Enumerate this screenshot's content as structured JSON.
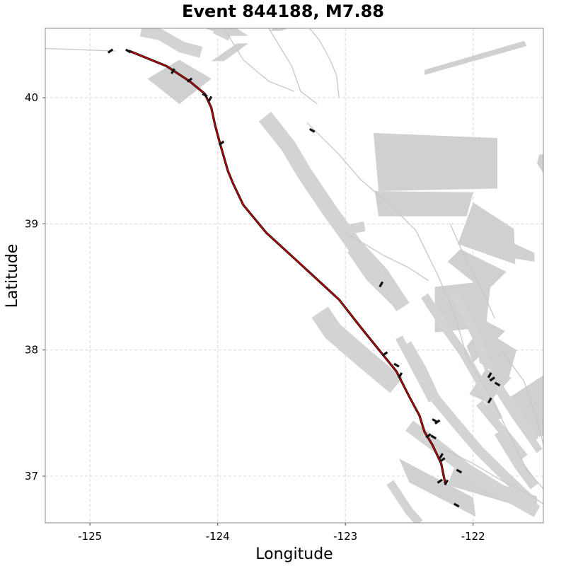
{
  "chart_data": {
    "type": "map",
    "title": "Event 844188, M7.88",
    "xlabel": "Longitude",
    "ylabel": "Latitude",
    "xlim": [
      -125.35,
      -121.45
    ],
    "ylim": [
      36.63,
      40.55
    ],
    "xticks": [
      -125,
      -124,
      -123,
      -122
    ],
    "yticks": [
      37,
      38,
      39,
      40
    ],
    "grid": true,
    "colors": {
      "rupture": "#cc0000",
      "fault_zone": "#d3d3d3",
      "trace": "#c8c8c8",
      "marker": "#111111"
    },
    "rupture_trace": [
      [
        -124.69,
        40.37
      ],
      [
        -124.4,
        40.25
      ],
      [
        -124.22,
        40.13
      ],
      [
        -124.1,
        40.03
      ],
      [
        -124.05,
        39.92
      ],
      [
        -124.02,
        39.78
      ],
      [
        -123.98,
        39.63
      ],
      [
        -123.92,
        39.42
      ],
      [
        -123.88,
        39.32
      ],
      [
        -123.8,
        39.15
      ],
      [
        -123.62,
        38.93
      ],
      [
        -123.35,
        38.68
      ],
      [
        -123.05,
        38.4
      ],
      [
        -122.88,
        38.18
      ],
      [
        -122.72,
        37.98
      ],
      [
        -122.6,
        37.83
      ],
      [
        -122.5,
        37.63
      ],
      [
        -122.42,
        37.48
      ],
      [
        -122.38,
        37.35
      ],
      [
        -122.32,
        37.25
      ],
      [
        -122.25,
        37.1
      ],
      [
        -122.22,
        36.95
      ]
    ],
    "fault_zones": [
      [
        [
          -124.1,
          40.55
        ],
        [
          -123.85,
          40.55
        ],
        [
          -123.76,
          40.49
        ],
        [
          -123.93,
          40.49
        ]
      ],
      [
        [
          -123.6,
          40.53
        ],
        [
          -123.56,
          40.55
        ],
        [
          -123.45,
          40.55
        ],
        [
          -123.5,
          40.53
        ]
      ],
      [
        [
          -123.85,
          40.43
        ],
        [
          -123.76,
          40.43
        ],
        [
          -123.95,
          40.29
        ],
        [
          -124.05,
          40.29
        ]
      ],
      [
        [
          -124.55,
          40.15
        ],
        [
          -124.3,
          40.3
        ],
        [
          -124.05,
          40.15
        ],
        [
          -124.3,
          39.95
        ]
      ],
      [
        [
          -122.38,
          40.22
        ],
        [
          -121.6,
          40.45
        ],
        [
          -121.58,
          40.41
        ],
        [
          -122.38,
          40.18
        ]
      ],
      [
        [
          -122.78,
          39.72
        ],
        [
          -121.81,
          39.68
        ],
        [
          -121.81,
          39.28
        ],
        [
          -122.74,
          39.26
        ]
      ],
      [
        [
          -122.77,
          39.26
        ],
        [
          -122.0,
          39.25
        ],
        [
          -122.05,
          39.06
        ],
        [
          -122.74,
          39.06
        ]
      ],
      [
        [
          -122.0,
          39.17
        ],
        [
          -121.68,
          38.96
        ],
        [
          -121.67,
          38.68
        ],
        [
          -122.12,
          38.84
        ]
      ],
      [
        [
          -121.8,
          38.9
        ],
        [
          -121.52,
          38.77
        ],
        [
          -121.52,
          38.7
        ],
        [
          -121.83,
          38.75
        ]
      ],
      [
        [
          -122.1,
          38.8
        ],
        [
          -121.74,
          38.62
        ],
        [
          -121.9,
          38.46
        ],
        [
          -122.2,
          38.7
        ]
      ],
      [
        [
          -122.3,
          38.5
        ],
        [
          -121.86,
          38.55
        ],
        [
          -121.9,
          38.18
        ],
        [
          -122.3,
          38.14
        ]
      ],
      [
        [
          -121.98,
          38.2
        ],
        [
          -121.66,
          38.0
        ],
        [
          -121.73,
          37.75
        ],
        [
          -121.95,
          37.9
        ]
      ],
      [
        [
          -122.05,
          38.03
        ],
        [
          -121.9,
          38.23
        ],
        [
          -121.75,
          38.15
        ],
        [
          -122.0,
          37.9
        ]
      ],
      [
        [
          -121.9,
          37.85
        ],
        [
          -121.7,
          37.78
        ],
        [
          -121.88,
          37.58
        ],
        [
          -122.03,
          37.65
        ]
      ],
      [
        [
          -121.75,
          37.6
        ],
        [
          -121.45,
          37.8
        ],
        [
          -121.45,
          37.32
        ],
        [
          -121.58,
          37.3
        ]
      ],
      [
        [
          -122.58,
          37.14
        ],
        [
          -122.0,
          36.83
        ],
        [
          -121.98,
          36.68
        ],
        [
          -122.5,
          36.95
        ]
      ],
      [
        [
          -122.15,
          37.06
        ],
        [
          -121.5,
          36.84
        ],
        [
          -121.5,
          36.72
        ],
        [
          -122.2,
          36.93
        ]
      ],
      [
        [
          -121.48,
          39.55
        ],
        [
          -121.45,
          39.55
        ],
        [
          -121.45,
          39.4
        ],
        [
          -121.5,
          39.48
        ]
      ]
    ],
    "fault_bands": [
      {
        "w": 16,
        "points": [
          [
            -124.6,
            40.53
          ],
          [
            -124.45,
            40.5
          ],
          [
            -124.28,
            40.4
          ],
          [
            -124.13,
            40.36
          ]
        ]
      },
      {
        "w": 15,
        "points": [
          [
            -124.02,
            40.55
          ],
          [
            -123.9,
            40.49
          ]
        ]
      },
      {
        "w": 22,
        "points": [
          [
            -123.63,
            39.85
          ],
          [
            -123.45,
            39.62
          ],
          [
            -123.32,
            39.4
          ],
          [
            -123.12,
            39.1
          ],
          [
            -122.92,
            38.82
          ],
          [
            -122.72,
            38.6
          ],
          [
            -122.55,
            38.34
          ]
        ]
      },
      {
        "w": 14,
        "points": [
          [
            -122.96,
            38.96
          ],
          [
            -122.85,
            38.98
          ]
        ]
      },
      {
        "w": 15,
        "points": [
          [
            -122.95,
            38.8
          ],
          [
            -122.8,
            38.58
          ],
          [
            -122.6,
            38.38
          ]
        ]
      },
      {
        "w": 28,
        "points": [
          [
            -123.2,
            38.3
          ],
          [
            -123.1,
            38.15
          ],
          [
            -122.85,
            37.93
          ],
          [
            -122.6,
            37.72
          ]
        ]
      },
      {
        "w": 14,
        "points": [
          [
            -122.52,
            38.05
          ],
          [
            -122.4,
            37.84
          ],
          [
            -122.3,
            37.62
          ],
          [
            -122.12,
            37.4
          ],
          [
            -121.95,
            37.2
          ],
          [
            -121.75,
            37.0
          ],
          [
            -121.52,
            36.78
          ]
        ]
      },
      {
        "w": 12,
        "points": [
          [
            -122.38,
            38.43
          ],
          [
            -122.22,
            38.18
          ],
          [
            -122.08,
            37.98
          ],
          [
            -121.92,
            37.7
          ],
          [
            -121.8,
            37.45
          ]
        ]
      },
      {
        "w": 11,
        "points": [
          [
            -122.58,
            38.1
          ],
          [
            -122.45,
            37.85
          ],
          [
            -122.32,
            37.6
          ]
        ]
      },
      {
        "w": 11,
        "points": [
          [
            -122.15,
            38.45
          ],
          [
            -122.05,
            38.25
          ],
          [
            -121.95,
            38.05
          ],
          [
            -121.88,
            37.85
          ]
        ]
      },
      {
        "w": 14,
        "points": [
          [
            -121.8,
            37.7
          ],
          [
            -121.66,
            37.48
          ],
          [
            -121.52,
            37.28
          ]
        ]
      },
      {
        "w": 12,
        "points": [
          [
            -122.65,
            36.95
          ],
          [
            -122.5,
            36.72
          ],
          [
            -122.42,
            36.63
          ]
        ]
      },
      {
        "w": 18,
        "points": [
          [
            -122.5,
            37.4
          ],
          [
            -122.3,
            37.25
          ],
          [
            -122.05,
            37.05
          ],
          [
            -121.78,
            36.88
          ],
          [
            -121.5,
            36.72
          ]
        ]
      },
      {
        "w": 12,
        "points": [
          [
            -121.95,
            37.58
          ],
          [
            -121.82,
            37.42
          ],
          [
            -121.72,
            37.3
          ],
          [
            -121.6,
            37.15
          ]
        ]
      },
      {
        "w": 10,
        "points": [
          [
            -121.68,
            37.55
          ],
          [
            -121.6,
            37.38
          ],
          [
            -121.48,
            37.2
          ]
        ]
      },
      {
        "w": 14,
        "points": [
          [
            -121.8,
            37.35
          ],
          [
            -121.65,
            37.1
          ],
          [
            -121.52,
            36.92
          ]
        ]
      }
    ],
    "fault_traces": [
      [
        [
          -125.35,
          40.39
        ],
        [
          -124.8,
          40.37
        ]
      ],
      [
        [
          -123.95,
          40.55
        ],
        [
          -123.8,
          40.3
        ],
        [
          -123.6,
          40.13
        ],
        [
          -123.4,
          40.05
        ]
      ],
      [
        [
          -123.6,
          40.55
        ],
        [
          -123.42,
          40.25
        ],
        [
          -123.35,
          40.05
        ],
        [
          -123.22,
          39.95
        ]
      ],
      [
        [
          -123.28,
          40.55
        ],
        [
          -123.2,
          40.45
        ],
        [
          -123.12,
          40.3
        ],
        [
          -123.07,
          40.18
        ],
        [
          -123.05,
          40.0
        ]
      ],
      [
        [
          -123.3,
          39.8
        ],
        [
          -123.05,
          39.55
        ],
        [
          -122.88,
          39.35
        ],
        [
          -122.65,
          39.15
        ],
        [
          -122.45,
          38.95
        ],
        [
          -122.28,
          38.6
        ],
        [
          -122.15,
          38.3
        ],
        [
          -122.05,
          37.95
        ],
        [
          -121.85,
          37.6
        ],
        [
          -121.7,
          37.3
        ],
        [
          -121.58,
          37.05
        ],
        [
          -121.45,
          36.9
        ]
      ],
      [
        [
          -123.0,
          38.93
        ],
        [
          -122.7,
          38.75
        ],
        [
          -122.5,
          38.65
        ],
        [
          -122.35,
          38.55
        ]
      ],
      [
        [
          -122.18,
          39.0
        ],
        [
          -122.05,
          38.7
        ],
        [
          -121.92,
          38.45
        ],
        [
          -121.83,
          38.25
        ]
      ],
      [
        [
          -121.78,
          38.0
        ],
        [
          -121.6,
          37.75
        ],
        [
          -121.5,
          37.45
        ],
        [
          -121.45,
          37.25
        ]
      ],
      [
        [
          -122.3,
          37.25
        ],
        [
          -122.0,
          37.1
        ],
        [
          -121.75,
          36.95
        ],
        [
          -121.55,
          36.85
        ],
        [
          -121.45,
          36.78
        ]
      ]
    ],
    "markers": [
      [
        -124.84,
        40.37
      ],
      [
        -124.7,
        40.37
      ],
      [
        -124.35,
        40.21
      ],
      [
        -124.22,
        40.14
      ],
      [
        -124.1,
        40.02
      ],
      [
        -124.06,
        39.99
      ],
      [
        -123.97,
        39.64
      ],
      [
        -123.26,
        39.74
      ],
      [
        -122.72,
        38.52
      ],
      [
        -122.69,
        37.97
      ],
      [
        -122.6,
        37.88
      ],
      [
        -122.57,
        37.8
      ],
      [
        -122.35,
        37.32
      ],
      [
        -122.31,
        37.31
      ],
      [
        -122.25,
        37.16
      ],
      [
        -122.24,
        37.13
      ],
      [
        -122.11,
        37.04
      ],
      [
        -122.21,
        36.95
      ],
      [
        -122.26,
        36.96
      ],
      [
        -122.13,
        36.77
      ],
      [
        -121.87,
        37.8
      ],
      [
        -121.85,
        37.77
      ],
      [
        -121.81,
        37.73
      ],
      [
        -121.87,
        37.6
      ],
      [
        -122.28,
        37.43
      ],
      [
        -122.3,
        37.44
      ]
    ]
  }
}
